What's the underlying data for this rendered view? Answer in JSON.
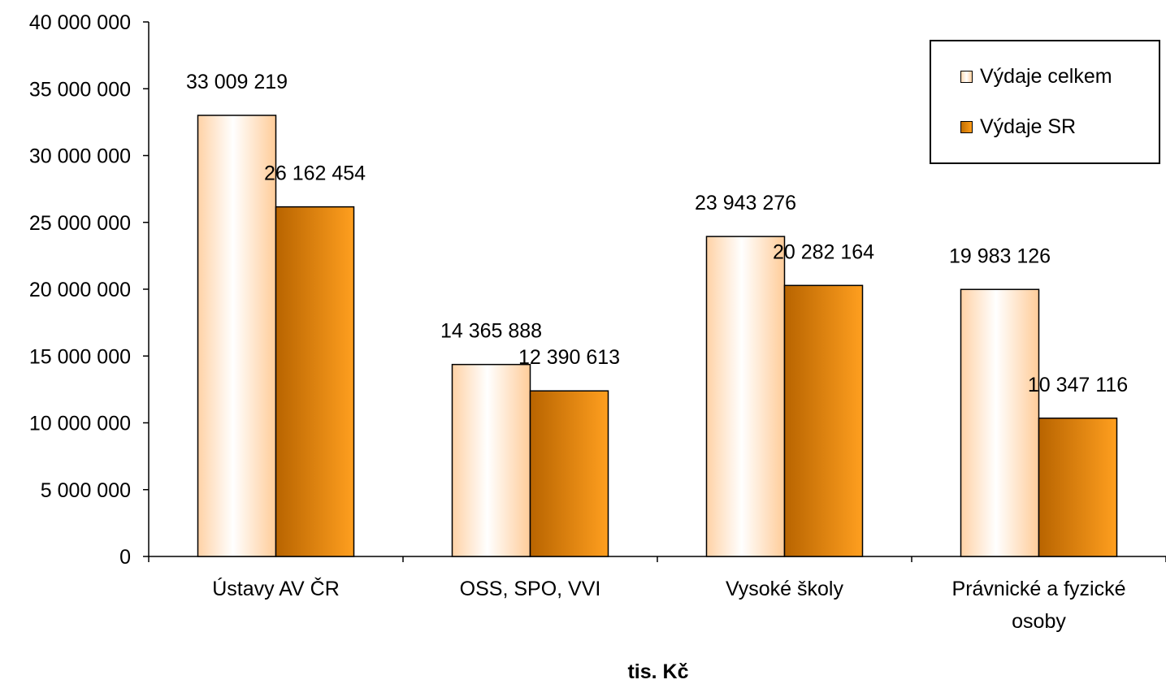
{
  "chart_data": {
    "type": "bar",
    "categories": [
      "Ústavy AV ČR",
      "OSS, SPO, VVI",
      "Vysoké školy",
      "Právnické a fyzické osoby"
    ],
    "series": [
      {
        "name": "Výdaje celkem",
        "values": [
          33009219,
          14365888,
          23943276,
          19983126
        ],
        "labels": [
          "33 009 219",
          "14 365 888",
          "23 943 276",
          "19 983 126"
        ]
      },
      {
        "name": "Výdaje SR",
        "values": [
          26162454,
          12390613,
          20282164,
          10347116
        ],
        "labels": [
          "26 162 454",
          "12 390 613",
          "20 282 164",
          "10 347 116"
        ]
      }
    ],
    "xlabel": "tis. Kč",
    "ylabel": "",
    "ylim": [
      0,
      40000000
    ],
    "yticks": [
      0,
      5000000,
      10000000,
      15000000,
      20000000,
      25000000,
      30000000,
      35000000,
      40000000
    ],
    "ytick_labels": [
      "0",
      "5 000 000",
      "10 000 000",
      "15 000 000",
      "20 000 000",
      "25 000 000",
      "30 000 000",
      "35 000 000",
      "40 000 000"
    ],
    "grid": false,
    "legend_position": "top-right"
  },
  "legend": {
    "items": [
      "Výdaje celkem",
      "Výdaje SR"
    ]
  },
  "colors": {
    "total_light": "#ffffff",
    "total_edge": "#ffd0a0",
    "sr_dark": "#c06e00",
    "sr_light": "#ff9d1a",
    "axis": "#000000"
  }
}
